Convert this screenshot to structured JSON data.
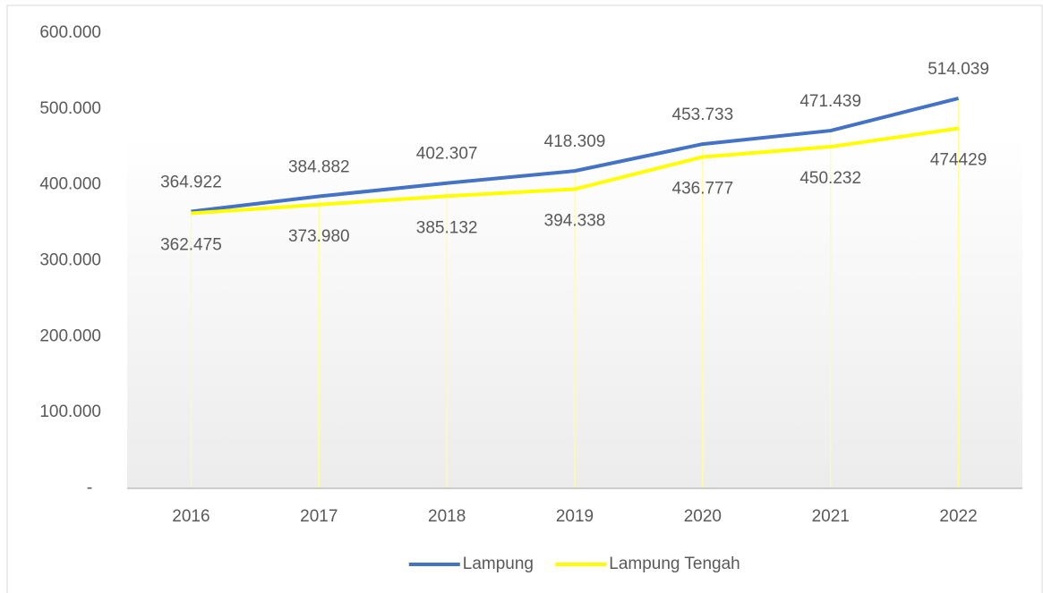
{
  "chart_data": {
    "type": "line",
    "categories": [
      "2016",
      "2017",
      "2018",
      "2019",
      "2020",
      "2021",
      "2022"
    ],
    "series": [
      {
        "name": "Lampung",
        "color": "#4472c4",
        "values": [
          364922,
          384882,
          402307,
          418309,
          453733,
          471439,
          514039
        ],
        "value_labels": [
          "364.922",
          "384.882",
          "402.307",
          "418.309",
          "453.733",
          "471.439",
          "514.039"
        ]
      },
      {
        "name": "Lampung Tengah",
        "color": "#ffff00",
        "values": [
          362475,
          373980,
          385132,
          394338,
          436777,
          450232,
          474429
        ],
        "value_labels": [
          "362.475",
          "373.980",
          "385.132",
          "394.338",
          "436.777",
          "450.232",
          "474429"
        ]
      }
    ],
    "ylim": [
      0,
      600000
    ],
    "yticks": [
      {
        "value": 0,
        "label": "-"
      },
      {
        "value": 100000,
        "label": "100.000"
      },
      {
        "value": 200000,
        "label": "200.000"
      },
      {
        "value": 300000,
        "label": "300.000"
      },
      {
        "value": 400000,
        "label": "400.000"
      },
      {
        "value": 500000,
        "label": "500.000"
      },
      {
        "value": 600000,
        "label": "600.000"
      }
    ],
    "grid": false,
    "legend": "bottom"
  }
}
